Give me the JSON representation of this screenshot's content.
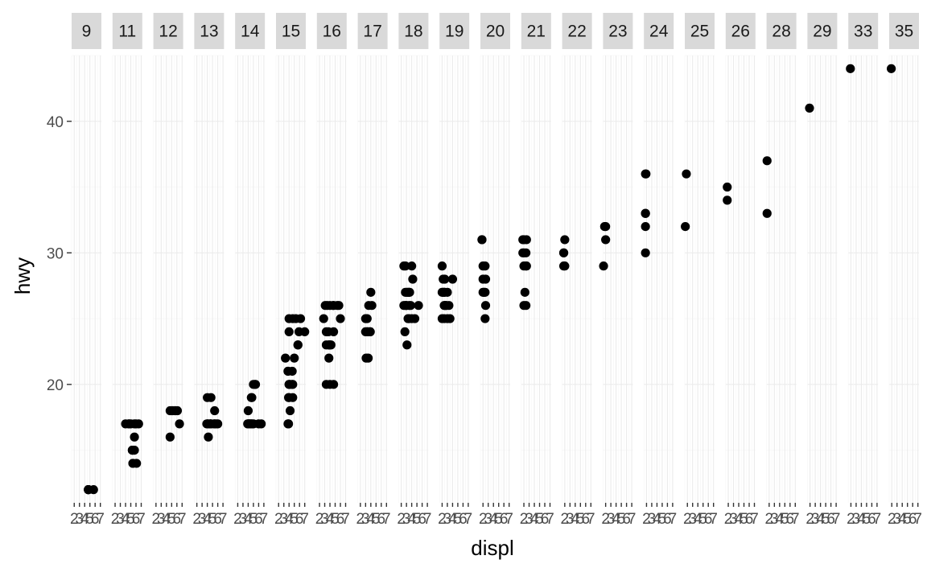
{
  "chart_data": {
    "type": "scatter",
    "facet_by": "cty",
    "title": "",
    "xlabel": "displ",
    "ylabel": "hwy",
    "xlim": [
      1.5,
      7.2
    ],
    "ylim": [
      11,
      45
    ],
    "xticks": [
      2,
      3,
      4,
      5,
      6,
      7
    ],
    "yticks": [
      20,
      30,
      40
    ],
    "grid": true,
    "legend": "none",
    "colors": {
      "panel_bg": "#ffffff",
      "grid_major": "#ebebeb",
      "grid_minor": "#f5f5f5",
      "strip_bg": "#d9d9d9",
      "point": "#000000",
      "tick": "#333333"
    },
    "panels": [
      {
        "label": "9",
        "points": [
          [
            4.7,
            12
          ],
          [
            4.7,
            12
          ],
          [
            5.7,
            12
          ],
          [
            4.7,
            12
          ],
          [
            4.7,
            12
          ]
        ]
      },
      {
        "label": "11",
        "points": [
          [
            5.3,
            15
          ],
          [
            5.3,
            15
          ],
          [
            5.7,
            15
          ],
          [
            6.5,
            17
          ],
          [
            4.7,
            17
          ],
          [
            5.7,
            16
          ],
          [
            5.7,
            17
          ],
          [
            5.4,
            14
          ],
          [
            5.4,
            14
          ],
          [
            4.6,
            17
          ],
          [
            5.0,
            17
          ],
          [
            5.3,
            15
          ],
          [
            6.0,
            17
          ],
          [
            5.6,
            15
          ],
          [
            6.1,
            14
          ],
          [
            4.0,
            17
          ]
        ]
      },
      {
        "label": "12",
        "points": [
          [
            4.7,
            16
          ],
          [
            6.5,
            17
          ],
          [
            5.2,
            18
          ],
          [
            5.7,
            18
          ],
          [
            4.7,
            18
          ],
          [
            6.1,
            18
          ],
          [
            5.0,
            18
          ],
          [
            5.7,
            18
          ]
        ]
      },
      {
        "label": "13",
        "points": [
          [
            3.9,
            17
          ],
          [
            4.0,
            19
          ],
          [
            4.6,
            17
          ],
          [
            5.4,
            18
          ],
          [
            6.0,
            17
          ],
          [
            4.0,
            17
          ],
          [
            4.6,
            17
          ],
          [
            5.4,
            17
          ],
          [
            4.2,
            17
          ],
          [
            4.7,
            17
          ],
          [
            4.2,
            16
          ],
          [
            5.7,
            17
          ],
          [
            4.7,
            19
          ],
          [
            5.3,
            17
          ]
        ]
      },
      {
        "label": "14",
        "points": [
          [
            4.7,
            17
          ],
          [
            5.0,
            20
          ],
          [
            3.9,
            17
          ],
          [
            4.7,
            19
          ],
          [
            4.6,
            19
          ],
          [
            5.4,
            20
          ],
          [
            4.0,
            18
          ],
          [
            4.6,
            17
          ],
          [
            4.2,
            17
          ],
          [
            5.0,
            17
          ],
          [
            6.0,
            17
          ],
          [
            4.2,
            17
          ],
          [
            4.0,
            17
          ],
          [
            5.3,
            20
          ],
          [
            6.5,
            17
          ],
          [
            4.4,
            17
          ]
        ]
      },
      {
        "label": "15",
        "points": [
          [
            3.8,
            17
          ],
          [
            4.0,
            20
          ],
          [
            3.9,
            17
          ],
          [
            4.7,
            19
          ],
          [
            4.7,
            20
          ],
          [
            5.9,
            24
          ],
          [
            3.9,
            19
          ],
          [
            4.0,
            24
          ],
          [
            4.0,
            25
          ],
          [
            4.7,
            25
          ],
          [
            5.3,
            25
          ],
          [
            5.7,
            23
          ],
          [
            6.2,
            25
          ],
          [
            7.0,
            24
          ],
          [
            3.8,
            21
          ],
          [
            4.0,
            20
          ],
          [
            4.2,
            20
          ],
          [
            4.6,
            21
          ],
          [
            5.0,
            22
          ],
          [
            5.7,
            23
          ],
          [
            3.3,
            22
          ],
          [
            3.8,
            21
          ],
          [
            4.2,
            18
          ],
          [
            4.0,
            19
          ],
          [
            4.6,
            20
          ]
        ]
      },
      {
        "label": "16",
        "points": [
          [
            2.8,
            25
          ],
          [
            3.1,
            26
          ],
          [
            3.3,
            24
          ],
          [
            3.3,
            23
          ],
          [
            3.8,
            23
          ],
          [
            3.8,
            22
          ],
          [
            4.0,
            20
          ],
          [
            4.7,
            24
          ],
          [
            4.0,
            23
          ],
          [
            4.6,
            26
          ],
          [
            5.4,
            26
          ],
          [
            3.3,
            20
          ],
          [
            3.5,
            26
          ],
          [
            3.7,
            24
          ],
          [
            3.8,
            23
          ],
          [
            4.0,
            26
          ],
          [
            4.7,
            26
          ],
          [
            5.7,
            26
          ],
          [
            6.0,
            25
          ],
          [
            4.2,
            23
          ],
          [
            4.7,
            20
          ]
        ]
      },
      {
        "label": "17",
        "points": [
          [
            3.1,
            25
          ],
          [
            3.3,
            24
          ],
          [
            3.5,
            22
          ],
          [
            3.4,
            24
          ],
          [
            3.0,
            25
          ],
          [
            3.1,
            22
          ],
          [
            3.6,
            26
          ],
          [
            3.8,
            24
          ],
          [
            4.0,
            27
          ],
          [
            4.2,
            26
          ],
          [
            3.0,
            24
          ],
          [
            3.3,
            25
          ],
          [
            3.9,
            24
          ]
        ]
      },
      {
        "label": "18",
        "points": [
          [
            2.5,
            29
          ],
          [
            2.8,
            26
          ],
          [
            3.0,
            26
          ],
          [
            2.8,
            27
          ],
          [
            3.1,
            27
          ],
          [
            3.3,
            25
          ],
          [
            3.5,
            26
          ],
          [
            3.6,
            27
          ],
          [
            4.0,
            29
          ],
          [
            4.2,
            28
          ],
          [
            2.5,
            26
          ],
          [
            2.7,
            24
          ],
          [
            3.0,
            26
          ],
          [
            3.1,
            23
          ],
          [
            3.3,
            27
          ],
          [
            3.5,
            27
          ],
          [
            3.8,
            26
          ],
          [
            4.0,
            25
          ],
          [
            4.6,
            25
          ],
          [
            5.3,
            26
          ],
          [
            2.8,
            29
          ],
          [
            3.5,
            25
          ]
        ]
      },
      {
        "label": "19",
        "points": [
          [
            2.0,
            29
          ],
          [
            2.2,
            27
          ],
          [
            2.4,
            27
          ],
          [
            2.5,
            28
          ],
          [
            2.7,
            26
          ],
          [
            3.0,
            25
          ],
          [
            3.3,
            26
          ],
          [
            2.0,
            25
          ],
          [
            2.2,
            28
          ],
          [
            2.4,
            26
          ],
          [
            2.5,
            27
          ],
          [
            2.5,
            26
          ],
          [
            2.8,
            26
          ],
          [
            3.0,
            27
          ],
          [
            3.5,
            25
          ],
          [
            4.0,
            28
          ],
          [
            2.0,
            27
          ],
          [
            2.4,
            25
          ]
        ]
      },
      {
        "label": "20",
        "points": [
          [
            1.8,
            31
          ],
          [
            2.0,
            28
          ],
          [
            2.0,
            27
          ],
          [
            2.4,
            29
          ],
          [
            2.5,
            26
          ],
          [
            2.4,
            25
          ],
          [
            2.5,
            28
          ],
          [
            2.2,
            27
          ],
          [
            2.0,
            29
          ],
          [
            1.8,
            31
          ],
          [
            2.4,
            27
          ]
        ]
      },
      {
        "label": "21",
        "points": [
          [
            1.8,
            30
          ],
          [
            2.0,
            29
          ],
          [
            2.0,
            31
          ],
          [
            2.4,
            29
          ],
          [
            2.5,
            31
          ],
          [
            2.0,
            26
          ],
          [
            2.2,
            27
          ],
          [
            2.4,
            30
          ],
          [
            2.5,
            29
          ],
          [
            1.8,
            31
          ],
          [
            2.0,
            30
          ],
          [
            2.4,
            26
          ]
        ]
      },
      {
        "label": "22",
        "points": [
          [
            1.8,
            29
          ],
          [
            1.8,
            30
          ],
          [
            2.0,
            31
          ],
          [
            2.0,
            29
          ],
          [
            1.8,
            30
          ]
        ]
      },
      {
        "label": "23",
        "points": [
          [
            1.6,
            29
          ],
          [
            2.0,
            32
          ],
          [
            2.0,
            31
          ],
          [
            1.8,
            32
          ]
        ]
      },
      {
        "label": "24",
        "points": [
          [
            1.8,
            30
          ],
          [
            1.8,
            32
          ],
          [
            1.8,
            33
          ],
          [
            1.8,
            36
          ],
          [
            1.9,
            36
          ],
          [
            1.8,
            33
          ]
        ]
      },
      {
        "label": "25",
        "points": [
          [
            1.6,
            32
          ],
          [
            1.8,
            36
          ]
        ]
      },
      {
        "label": "26",
        "points": [
          [
            1.8,
            35
          ],
          [
            1.8,
            34
          ]
        ]
      },
      {
        "label": "28",
        "points": [
          [
            1.6,
            33
          ],
          [
            1.6,
            37
          ]
        ]
      },
      {
        "label": "29",
        "points": [
          [
            1.9,
            41
          ]
        ]
      },
      {
        "label": "33",
        "points": [
          [
            1.9,
            44
          ]
        ]
      },
      {
        "label": "35",
        "points": [
          [
            1.9,
            44
          ]
        ]
      }
    ]
  }
}
